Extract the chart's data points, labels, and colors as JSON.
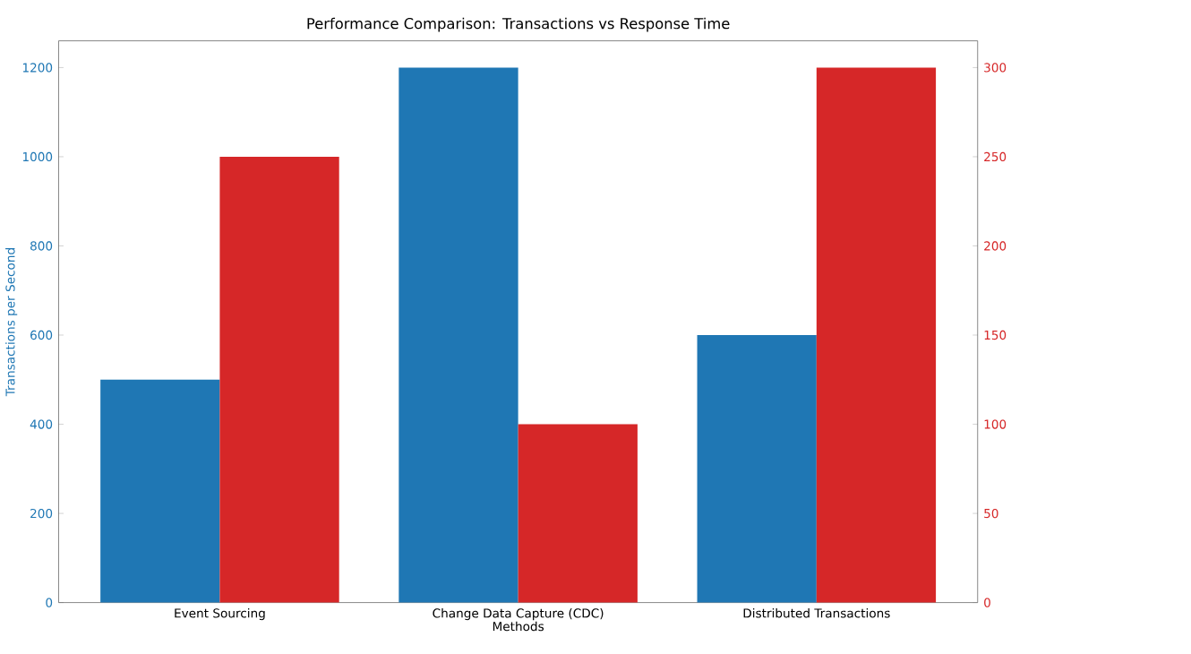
{
  "chart_data": {
    "type": "bar",
    "title": "Performance Comparison: Transactions vs Response Time",
    "xlabel": "Methods",
    "ylabel": "Transactions per Second",
    "categories": [
      "Event Sourcing",
      "Change Data Capture (CDC)",
      "Distributed Transactions"
    ],
    "series": [
      {
        "color": "#1f77b4",
        "values": [
          500,
          1200,
          600
        ]
      },
      {
        "color": "#d62728",
        "values": [
          250,
          100,
          300
        ],
        "axis": "y2"
      }
    ],
    "ylim": [
      0,
      1260
    ],
    "yticks": [
      0,
      200,
      400,
      600,
      800,
      1000,
      1200
    ],
    "y2lim": [
      0,
      315
    ],
    "y2ticks": [
      0,
      50,
      100,
      150,
      200,
      250,
      300
    ]
  }
}
